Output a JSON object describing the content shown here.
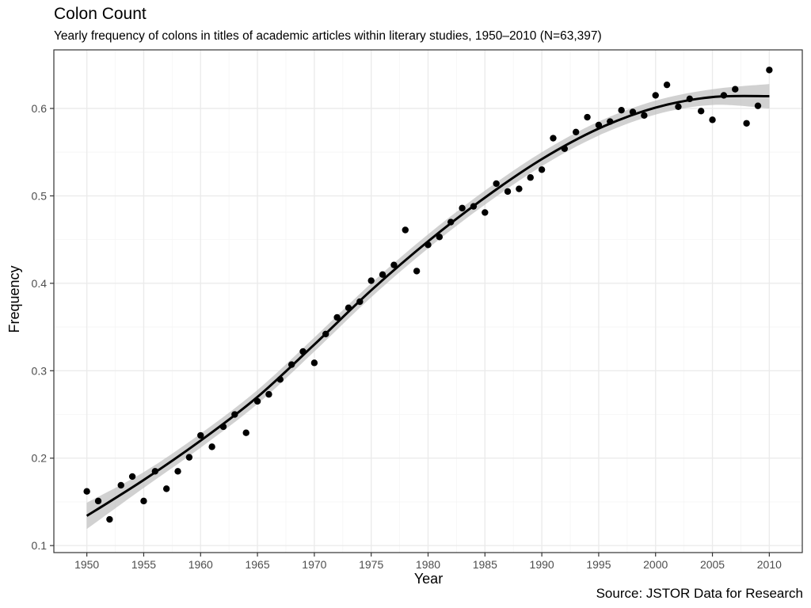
{
  "chart_data": {
    "type": "scatter",
    "title": "Colon Count",
    "subtitle": "Yearly frequency of colons in titles of academic articles within literary studies, 1950–2010 (N=63,397)",
    "xlabel": "Year",
    "ylabel": "Frequency",
    "caption": "Source: JSTOR Data for Research",
    "xlim": [
      1947.1,
      2012.9
    ],
    "ylim": [
      0.092,
      0.667
    ],
    "x_ticks": [
      1950,
      1955,
      1960,
      1965,
      1970,
      1975,
      1980,
      1985,
      1990,
      1995,
      2000,
      2005,
      2010
    ],
    "y_ticks": [
      0.1,
      0.2,
      0.3,
      0.4,
      0.5,
      0.6
    ],
    "grid": true,
    "colors": {
      "points": "#000000",
      "trend": "#000000",
      "band": "#bebebe",
      "panel_border": "#333333",
      "grid_major": "#ebebeb",
      "grid_minor": "#f5f5f5"
    },
    "points": {
      "x": [
        1950,
        1951,
        1952,
        1953,
        1954,
        1955,
        1956,
        1957,
        1958,
        1959,
        1960,
        1961,
        1962,
        1963,
        1964,
        1965,
        1966,
        1967,
        1968,
        1969,
        1970,
        1971,
        1972,
        1973,
        1974,
        1975,
        1976,
        1977,
        1978,
        1979,
        1980,
        1981,
        1982,
        1983,
        1984,
        1985,
        1986,
        1987,
        1988,
        1989,
        1990,
        1991,
        1992,
        1993,
        1994,
        1995,
        1996,
        1997,
        1998,
        1999,
        2000,
        2001,
        2002,
        2003,
        2004,
        2005,
        2006,
        2007,
        2008,
        2009,
        2010
      ],
      "y": [
        0.162,
        0.151,
        0.13,
        0.169,
        0.179,
        0.151,
        0.185,
        0.165,
        0.185,
        0.201,
        0.226,
        0.213,
        0.236,
        0.25,
        0.229,
        0.265,
        0.273,
        0.29,
        0.307,
        0.322,
        0.309,
        0.342,
        0.361,
        0.372,
        0.379,
        0.403,
        0.41,
        0.421,
        0.461,
        0.414,
        0.444,
        0.453,
        0.47,
        0.486,
        0.488,
        0.481,
        0.514,
        0.505,
        0.508,
        0.521,
        0.53,
        0.566,
        0.554,
        0.573,
        0.59,
        0.581,
        0.585,
        0.598,
        0.596,
        0.592,
        0.615,
        0.627,
        0.602,
        0.611,
        0.597,
        0.587,
        0.615,
        0.622,
        0.583,
        0.603,
        0.644
      ]
    },
    "trend": {
      "x": [
        1950,
        1955,
        1960,
        1965,
        1970,
        1975,
        1980,
        1985,
        1990,
        1995,
        2000,
        2005,
        2010
      ],
      "y": [
        0.134,
        0.175,
        0.22,
        0.27,
        0.33,
        0.392,
        0.448,
        0.498,
        0.542,
        0.577,
        0.601,
        0.613,
        0.614
      ],
      "band_halfwidth": [
        0.015,
        0.009,
        0.008,
        0.008,
        0.008,
        0.008,
        0.008,
        0.008,
        0.008,
        0.008,
        0.008,
        0.009,
        0.014
      ]
    }
  }
}
